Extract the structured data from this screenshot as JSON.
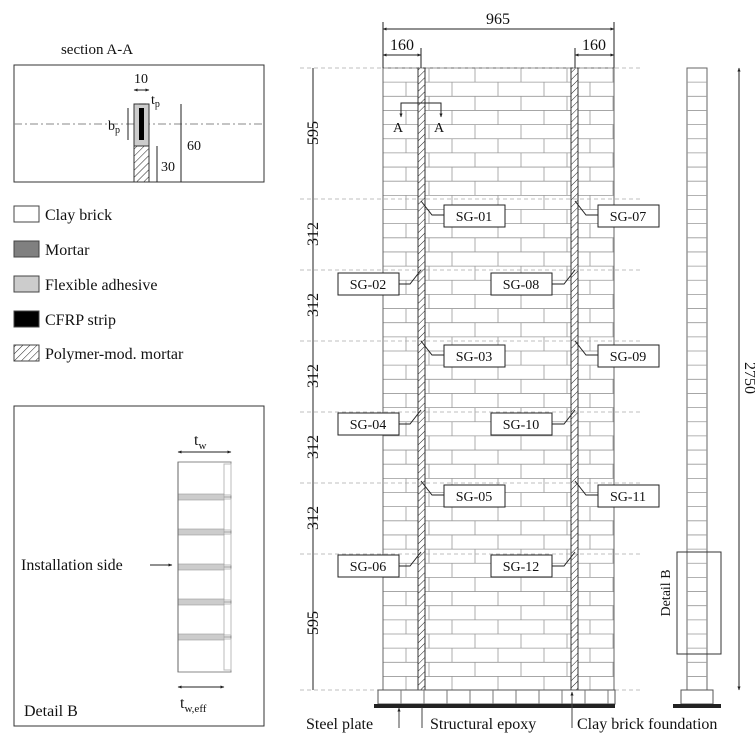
{
  "section_a": {
    "title": "section A-A",
    "dim_10": "10",
    "dim_tp": "t",
    "dim_tp_sub": "p",
    "dim_bp": "b",
    "dim_bp_sub": "p",
    "dim_60": "60",
    "dim_30": "30"
  },
  "legend": [
    {
      "label": "Clay brick",
      "swatch": "#ffffff",
      "hatched": false
    },
    {
      "label": "Mortar",
      "swatch": "#808080",
      "hatched": false
    },
    {
      "label": "Flexible adhesive",
      "swatch": "#cccccc",
      "hatched": false
    },
    {
      "label": "CFRP strip",
      "swatch": "#000000",
      "hatched": false
    },
    {
      "label": "Polymer-mod. mortar",
      "swatch": "#ffffff",
      "hatched": true
    }
  ],
  "detail_b": {
    "tw": "t",
    "tw_sub": "w",
    "tw_eff": "t",
    "tw_eff_sub": "w,eff",
    "installation_label": "Installation side",
    "caption": "Detail B"
  },
  "wall": {
    "width_total": "965",
    "strip_offset_left": "160",
    "strip_offset_right": "160",
    "height_total": "2750",
    "section_marker": "A",
    "heights": [
      "595",
      "312",
      "312",
      "312",
      "312",
      "312",
      "595"
    ],
    "detail_b_label": "Detail B",
    "gauges": [
      {
        "id": "SG-01",
        "row": 0,
        "pos": "left-strip-right"
      },
      {
        "id": "SG-07",
        "row": 0,
        "pos": "right-strip-right"
      },
      {
        "id": "SG-02",
        "row": 1,
        "pos": "left-strip-left"
      },
      {
        "id": "SG-08",
        "row": 1,
        "pos": "right-strip-left"
      },
      {
        "id": "SG-03",
        "row": 2,
        "pos": "left-strip-right"
      },
      {
        "id": "SG-09",
        "row": 2,
        "pos": "right-strip-right"
      },
      {
        "id": "SG-04",
        "row": 3,
        "pos": "left-strip-left"
      },
      {
        "id": "SG-10",
        "row": 3,
        "pos": "right-strip-left"
      },
      {
        "id": "SG-05",
        "row": 4,
        "pos": "left-strip-right"
      },
      {
        "id": "SG-11",
        "row": 4,
        "pos": "right-strip-right"
      },
      {
        "id": "SG-06",
        "row": 5,
        "pos": "left-strip-left"
      },
      {
        "id": "SG-12",
        "row": 5,
        "pos": "right-strip-left"
      }
    ]
  },
  "bottom_labels": {
    "steel_plate": "Steel plate",
    "structural_epoxy": "Structural epoxy",
    "clay_brick_foundation": "Clay brick foundation"
  }
}
